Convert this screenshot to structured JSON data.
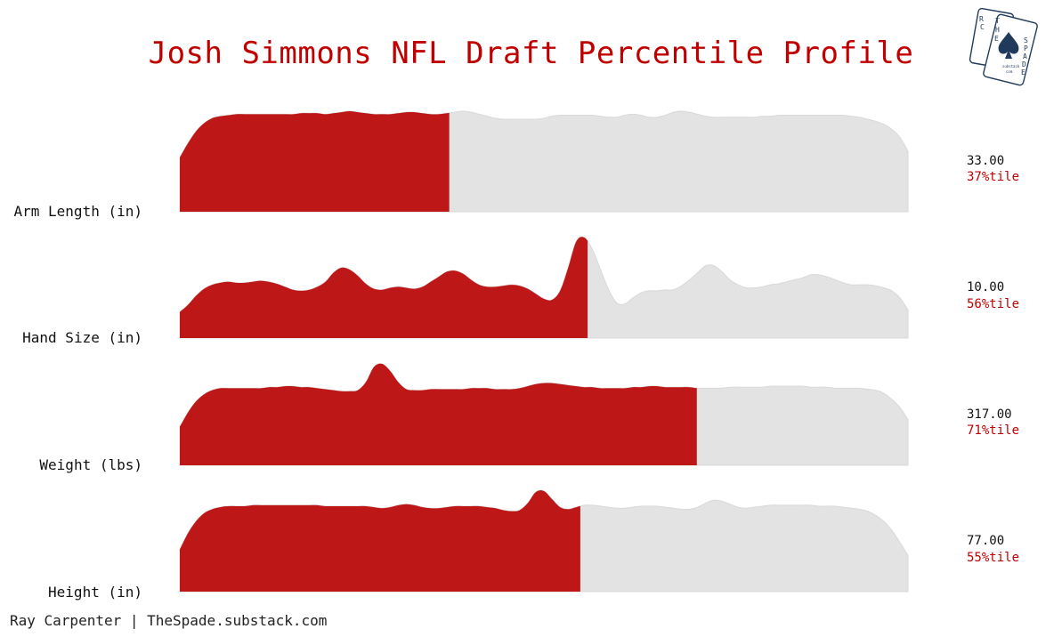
{
  "title": "Josh Simmons NFL Draft Percentile Profile",
  "footer": "Ray Carpenter | TheSpade.substack.com",
  "colors": {
    "highlight": "#bd1717",
    "background_fill": "#e3e3e3",
    "title": "#c00000",
    "logo": "#1f3a5a"
  },
  "logo": {
    "icon": "spade-playing-cards-icon",
    "text": [
      "R",
      "C",
      "T",
      "H",
      "E",
      "S",
      "P",
      "A",
      "D",
      "E",
      "substack",
      "com"
    ]
  },
  "chart_data": {
    "type": "ridgeline",
    "x_domain": [
      0,
      100
    ],
    "unit": "percentile",
    "rows": [
      {
        "label": "Arm Length (in)",
        "value_text": "33.00",
        "percentile_text": "37%tile",
        "percentile": 37,
        "density": [
          0.54,
          0.68,
          0.8,
          0.88,
          0.93,
          0.95,
          0.96,
          0.97,
          0.97,
          0.97,
          0.97,
          0.97,
          0.97,
          0.97,
          0.97,
          0.98,
          0.98,
          0.98,
          0.97,
          0.98,
          0.99,
          1.0,
          0.99,
          0.98,
          0.97,
          0.97,
          0.97,
          0.98,
          0.99,
          0.99,
          0.98,
          0.97,
          0.97,
          0.98,
          0.99,
          1.0,
          0.99,
          0.97,
          0.95,
          0.93,
          0.92,
          0.92,
          0.92,
          0.92,
          0.92,
          0.93,
          0.95,
          0.96,
          0.96,
          0.96,
          0.96,
          0.96,
          0.95,
          0.94,
          0.94,
          0.96,
          0.97,
          0.96,
          0.94,
          0.94,
          0.96,
          0.99,
          1.0,
          0.99,
          0.97,
          0.95,
          0.94,
          0.94,
          0.94,
          0.94,
          0.94,
          0.94,
          0.95,
          0.95,
          0.96,
          0.96,
          0.96,
          0.96,
          0.96,
          0.96,
          0.96,
          0.96,
          0.96,
          0.95,
          0.94,
          0.92,
          0.9,
          0.87,
          0.82,
          0.74,
          0.6
        ]
      },
      {
        "label": "Hand Size (in)",
        "value_text": "10.00",
        "percentile_text": "56%tile",
        "percentile": 56,
        "density": [
          0.26,
          0.33,
          0.42,
          0.49,
          0.53,
          0.55,
          0.56,
          0.55,
          0.55,
          0.56,
          0.57,
          0.56,
          0.54,
          0.51,
          0.48,
          0.47,
          0.48,
          0.51,
          0.56,
          0.65,
          0.7,
          0.68,
          0.62,
          0.54,
          0.49,
          0.48,
          0.5,
          0.51,
          0.5,
          0.49,
          0.51,
          0.56,
          0.61,
          0.66,
          0.67,
          0.64,
          0.58,
          0.53,
          0.51,
          0.51,
          0.52,
          0.53,
          0.52,
          0.49,
          0.44,
          0.39,
          0.38,
          0.47,
          0.7,
          0.96,
          1.0,
          0.88,
          0.68,
          0.48,
          0.35,
          0.34,
          0.4,
          0.45,
          0.47,
          0.47,
          0.48,
          0.48,
          0.52,
          0.58,
          0.65,
          0.72,
          0.72,
          0.66,
          0.58,
          0.53,
          0.5,
          0.5,
          0.51,
          0.53,
          0.54,
          0.56,
          0.58,
          0.6,
          0.63,
          0.63,
          0.61,
          0.58,
          0.55,
          0.53,
          0.53,
          0.53,
          0.52,
          0.5,
          0.47,
          0.4,
          0.28
        ]
      },
      {
        "label": "Weight (lbs)",
        "value_text": "317.00",
        "percentile_text": "71%tile",
        "percentile": 71,
        "density": [
          0.38,
          0.52,
          0.63,
          0.7,
          0.74,
          0.76,
          0.76,
          0.76,
          0.76,
          0.76,
          0.76,
          0.77,
          0.77,
          0.78,
          0.78,
          0.77,
          0.77,
          0.76,
          0.75,
          0.74,
          0.73,
          0.73,
          0.74,
          0.82,
          0.97,
          1.0,
          0.93,
          0.82,
          0.75,
          0.74,
          0.74,
          0.75,
          0.75,
          0.75,
          0.75,
          0.75,
          0.76,
          0.76,
          0.76,
          0.75,
          0.75,
          0.75,
          0.76,
          0.78,
          0.8,
          0.81,
          0.81,
          0.8,
          0.79,
          0.78,
          0.77,
          0.77,
          0.76,
          0.76,
          0.76,
          0.76,
          0.77,
          0.77,
          0.78,
          0.78,
          0.77,
          0.77,
          0.77,
          0.77,
          0.76,
          0.76,
          0.76,
          0.76,
          0.77,
          0.77,
          0.77,
          0.77,
          0.77,
          0.78,
          0.78,
          0.78,
          0.78,
          0.78,
          0.77,
          0.77,
          0.77,
          0.76,
          0.76,
          0.76,
          0.76,
          0.75,
          0.74,
          0.71,
          0.65,
          0.57,
          0.45
        ]
      },
      {
        "label": "Height (in)",
        "value_text": "77.00",
        "percentile_text": "55%tile",
        "percentile": 55,
        "density": [
          0.42,
          0.58,
          0.7,
          0.78,
          0.82,
          0.84,
          0.85,
          0.85,
          0.85,
          0.86,
          0.86,
          0.86,
          0.86,
          0.86,
          0.86,
          0.86,
          0.86,
          0.86,
          0.85,
          0.85,
          0.85,
          0.85,
          0.85,
          0.85,
          0.84,
          0.83,
          0.84,
          0.86,
          0.87,
          0.86,
          0.84,
          0.83,
          0.83,
          0.84,
          0.85,
          0.85,
          0.85,
          0.85,
          0.84,
          0.83,
          0.81,
          0.8,
          0.81,
          0.88,
          0.99,
          1.0,
          0.92,
          0.84,
          0.82,
          0.84,
          0.86,
          0.86,
          0.85,
          0.84,
          0.83,
          0.83,
          0.84,
          0.85,
          0.85,
          0.85,
          0.84,
          0.83,
          0.82,
          0.82,
          0.84,
          0.88,
          0.91,
          0.9,
          0.87,
          0.84,
          0.83,
          0.84,
          0.85,
          0.86,
          0.86,
          0.86,
          0.86,
          0.86,
          0.86,
          0.85,
          0.85,
          0.85,
          0.84,
          0.83,
          0.82,
          0.8,
          0.76,
          0.7,
          0.61,
          0.49,
          0.36
        ]
      }
    ]
  }
}
